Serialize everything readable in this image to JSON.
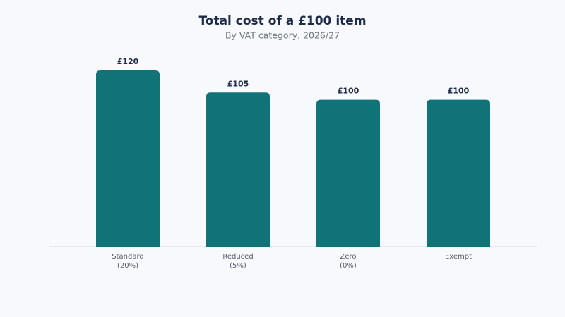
{
  "chart_data": {
    "type": "bar",
    "title": "Total cost of a £100 item",
    "subtitle": "By VAT category, 2026/27",
    "categories": [
      "Standard\n(20%)",
      "Reduced\n(5%)",
      "Zero\n(0%)",
      "Exempt"
    ],
    "values": [
      120,
      105,
      100,
      100
    ],
    "value_labels": [
      "£120",
      "£105",
      "£100",
      "£100"
    ],
    "color": "#0f7377"
  }
}
